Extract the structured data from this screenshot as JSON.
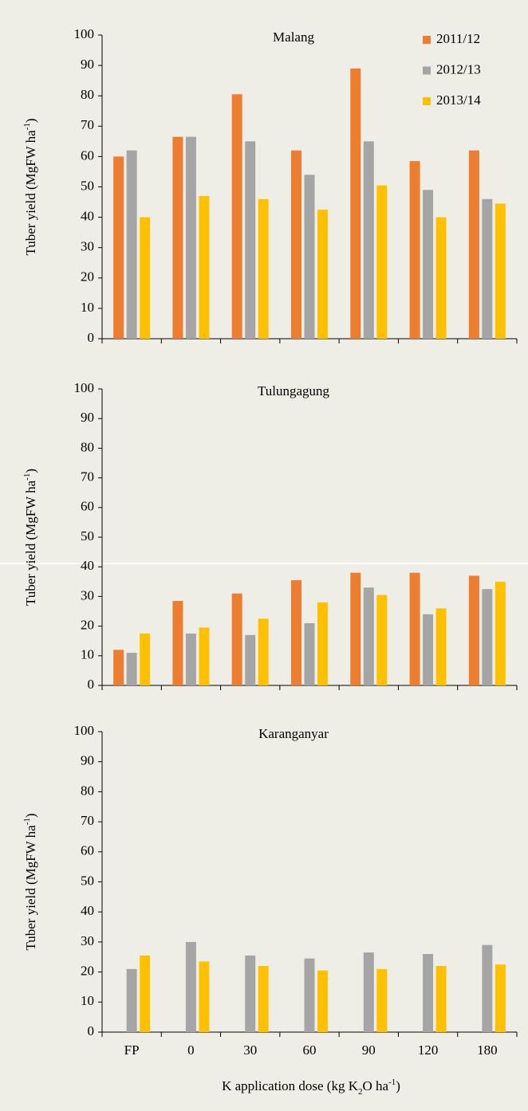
{
  "chart_data": [
    {
      "type": "bar",
      "title": "Malang",
      "y_label": [
        "Tuber yield (MgFW ha",
        "-1",
        ")"
      ],
      "categories": [
        null,
        null,
        null,
        null,
        null,
        null,
        null
      ],
      "series": [
        {
          "name": "2011/12",
          "color": "#ed7d31",
          "values": [
            60,
            66.5,
            80.5,
            62,
            89,
            58.5,
            62
          ]
        },
        {
          "name": "2012/13",
          "color": "#a5a5a5",
          "values": [
            62,
            66.5,
            65,
            54,
            65,
            49,
            46
          ]
        },
        {
          "name": "2013/14",
          "color": "#ffc000",
          "values": [
            40,
            47,
            46,
            42.5,
            50.5,
            40,
            44.5
          ]
        }
      ],
      "ylim": [
        0,
        100
      ],
      "yticks": [
        0,
        10,
        20,
        30,
        40,
        50,
        60,
        70,
        80,
        90,
        100
      ],
      "legend": "top-right"
    },
    {
      "type": "bar",
      "title": "Tulungagung",
      "y_label": [
        "Tuber yield (MgFW ha",
        "-1",
        ")"
      ],
      "categories": [
        null,
        null,
        null,
        null,
        null,
        null,
        null
      ],
      "series": [
        {
          "color": "#ed7d31",
          "values": [
            12,
            28.5,
            31,
            35.5,
            38,
            38,
            37
          ]
        },
        {
          "color": "#a5a5a5",
          "values": [
            11,
            17.5,
            17,
            21,
            33,
            24,
            32.5
          ]
        },
        {
          "color": "#ffc000",
          "values": [
            17.5,
            19.5,
            22.5,
            28,
            30.5,
            26,
            35
          ]
        }
      ],
      "ylim": [
        0,
        100
      ],
      "yticks": [
        0,
        10,
        20,
        30,
        40,
        50,
        60,
        70,
        80,
        90,
        100
      ]
    },
    {
      "type": "bar",
      "title": "Karanganyar",
      "y_label": [
        "Tuber yield (MgFW ha",
        "-1",
        ")"
      ],
      "x_label": [
        "K application dose (kg K",
        "2",
        "O ha",
        "-1",
        ")"
      ],
      "categories": [
        "FP",
        "0",
        "30",
        "60",
        "90",
        "120",
        "180"
      ],
      "series": [
        {
          "color": "#ed7d31",
          "values": [
            null,
            null,
            null,
            null,
            null,
            null,
            null
          ]
        },
        {
          "color": "#a5a5a5",
          "values": [
            21,
            30,
            25.5,
            24.5,
            26.5,
            26,
            29
          ]
        },
        {
          "color": "#ffc000",
          "values": [
            25.5,
            23.5,
            22,
            20.5,
            21,
            22,
            22.5
          ]
        }
      ],
      "ylim": [
        0,
        100
      ],
      "yticks": [
        0,
        10,
        20,
        30,
        40,
        50,
        60,
        70,
        80,
        90,
        100
      ]
    }
  ]
}
